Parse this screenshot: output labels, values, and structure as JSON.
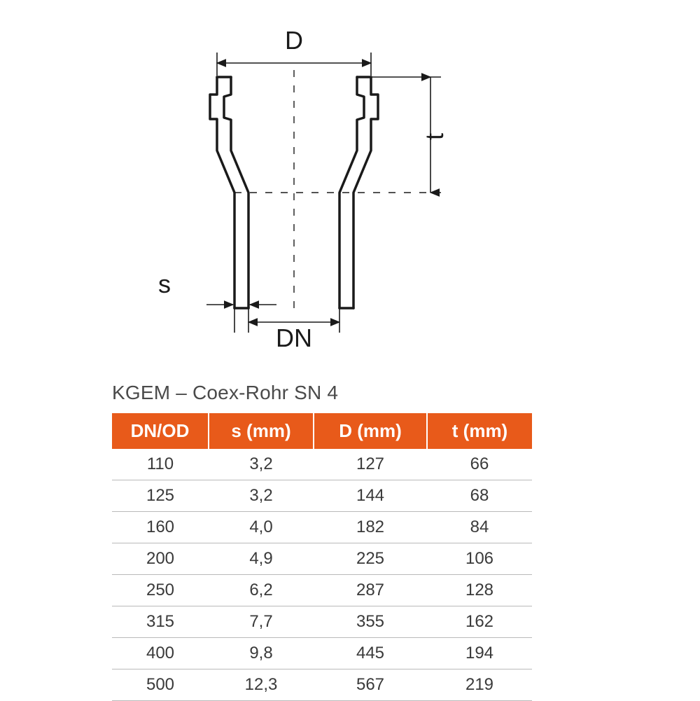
{
  "diagram": {
    "stroke": "#1a1a1a",
    "stroke_width_main": 3.5,
    "stroke_width_thin": 1.6,
    "dash": "10,12",
    "label_fontsize": 36,
    "labels": {
      "D": "D",
      "DN": "DN",
      "s": "s",
      "t": "t"
    }
  },
  "caption": "KGEM – Coex-Rohr SN 4",
  "table": {
    "header_bg": "#e85a1a",
    "header_fg": "#ffffff",
    "row_border": "#b9b9b9",
    "header_fontsize": 26,
    "cell_fontsize": 24,
    "columns": [
      "DN/OD",
      "s (mm)",
      "D (mm)",
      "t (mm)"
    ],
    "rows": [
      [
        "110",
        "3,2",
        "127",
        "66"
      ],
      [
        "125",
        "3,2",
        "144",
        "68"
      ],
      [
        "160",
        "4,0",
        "182",
        "84"
      ],
      [
        "200",
        "4,9",
        "225",
        "106"
      ],
      [
        "250",
        "6,2",
        "287",
        "128"
      ],
      [
        "315",
        "7,7",
        "355",
        "162"
      ],
      [
        "400",
        "9,8",
        "445",
        "194"
      ],
      [
        "500",
        "12,3",
        "567",
        "219"
      ]
    ]
  }
}
